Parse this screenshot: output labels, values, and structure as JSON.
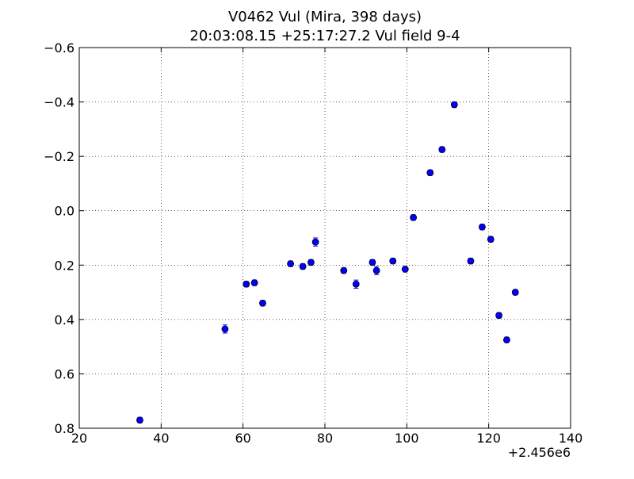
{
  "chart_data": {
    "type": "scatter",
    "title_lines": [
      "V0462 Vul (Mira, 398 days)",
      "20:03:08.15 +25:17:27.2 Vul field 9-4"
    ],
    "xlabel": "",
    "ylabel": "",
    "x_offset_label": "+2.456e6",
    "xlim": [
      20,
      140
    ],
    "ylim": [
      0.8,
      -0.6
    ],
    "y_inverted": true,
    "xticks": [
      20,
      40,
      60,
      80,
      100,
      120,
      140
    ],
    "xtick_labels": [
      "20",
      "40",
      "60",
      "80",
      "100",
      "120",
      "140"
    ],
    "yticks": [
      -0.6,
      -0.4,
      -0.2,
      0.0,
      0.2,
      0.4,
      0.6,
      0.8
    ],
    "ytick_labels": [
      "−0.6",
      "−0.4",
      "−0.2",
      "0.0",
      "0.2",
      "0.4",
      "0.6",
      "0.8"
    ],
    "grid": true,
    "grid_style": "dotted",
    "marker_color": "#0000ff",
    "errorbar_color": "#0000ff",
    "points": [
      {
        "x": 34.8,
        "y": 0.77,
        "err": 0.01
      },
      {
        "x": 55.6,
        "y": 0.435,
        "err": 0.015
      },
      {
        "x": 60.8,
        "y": 0.27,
        "err": 0.01
      },
      {
        "x": 62.8,
        "y": 0.265,
        "err": 0.01
      },
      {
        "x": 64.8,
        "y": 0.34,
        "err": 0.01
      },
      {
        "x": 71.6,
        "y": 0.195,
        "err": 0.01
      },
      {
        "x": 74.6,
        "y": 0.205,
        "err": 0.01
      },
      {
        "x": 76.6,
        "y": 0.19,
        "err": 0.01
      },
      {
        "x": 77.7,
        "y": 0.115,
        "err": 0.015
      },
      {
        "x": 84.6,
        "y": 0.22,
        "err": 0.01
      },
      {
        "x": 87.6,
        "y": 0.27,
        "err": 0.015
      },
      {
        "x": 91.6,
        "y": 0.19,
        "err": 0.01
      },
      {
        "x": 92.6,
        "y": 0.22,
        "err": 0.015
      },
      {
        "x": 96.6,
        "y": 0.185,
        "err": 0.01
      },
      {
        "x": 99.6,
        "y": 0.215,
        "err": 0.01
      },
      {
        "x": 101.6,
        "y": 0.025,
        "err": 0.01
      },
      {
        "x": 105.7,
        "y": -0.14,
        "err": 0.01
      },
      {
        "x": 108.6,
        "y": -0.225,
        "err": 0.01
      },
      {
        "x": 111.6,
        "y": -0.39,
        "err": 0.01
      },
      {
        "x": 115.6,
        "y": 0.185,
        "err": 0.01
      },
      {
        "x": 118.4,
        "y": 0.06,
        "err": 0.01
      },
      {
        "x": 120.5,
        "y": 0.105,
        "err": 0.01
      },
      {
        "x": 122.5,
        "y": 0.385,
        "err": 0.01
      },
      {
        "x": 124.4,
        "y": 0.475,
        "err": 0.01
      },
      {
        "x": 126.5,
        "y": 0.3,
        "err": 0.01
      }
    ]
  }
}
